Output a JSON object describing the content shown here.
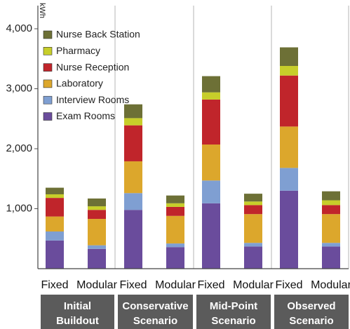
{
  "chart_data": {
    "type": "bar",
    "stacked": true,
    "ylabel": "kWh",
    "ylim": [
      0,
      4300
    ],
    "yticks": [
      1000,
      2000,
      3000,
      4000
    ],
    "ytick_labels": [
      "1,000",
      "2,000",
      "3,000",
      "4,000"
    ],
    "categories": [
      "Fixed",
      "Modular",
      "Fixed",
      "Modular",
      "Fixed",
      "Modular",
      "Fixed",
      "Modular"
    ],
    "groups": [
      {
        "label_lines": [
          "Initial",
          "Buildout"
        ]
      },
      {
        "label_lines": [
          "Conservative",
          "Scenario"
        ]
      },
      {
        "label_lines": [
          "Mid-Point",
          "Scenario"
        ]
      },
      {
        "label_lines": [
          "Observed",
          "Scenario"
        ]
      }
    ],
    "series": [
      {
        "name": "Exam Rooms",
        "color": "#6a4c9c",
        "values": [
          470,
          330,
          980,
          360,
          1090,
          370,
          1300,
          370
        ]
      },
      {
        "name": "Interview Rooms",
        "color": "#7f9fd2",
        "values": [
          150,
          60,
          280,
          60,
          380,
          60,
          380,
          60
        ]
      },
      {
        "name": "Laboratory",
        "color": "#dca72c",
        "values": [
          250,
          440,
          530,
          460,
          600,
          480,
          690,
          480
        ]
      },
      {
        "name": "Nurse Reception",
        "color": "#c0252b",
        "values": [
          310,
          150,
          600,
          150,
          750,
          150,
          850,
          150
        ]
      },
      {
        "name": "Pharmacy",
        "color": "#c7ce2a",
        "values": [
          60,
          60,
          120,
          60,
          120,
          60,
          160,
          80
        ]
      },
      {
        "name": "Nurse Back Station",
        "color": "#6d7036",
        "values": [
          110,
          130,
          230,
          130,
          270,
          130,
          310,
          150
        ]
      }
    ],
    "legend_order": [
      "Nurse Back Station",
      "Pharmacy",
      "Nurse Reception",
      "Laboratory",
      "Interview Rooms",
      "Exam Rooms"
    ],
    "legend_position": "top-left",
    "grid": false
  }
}
